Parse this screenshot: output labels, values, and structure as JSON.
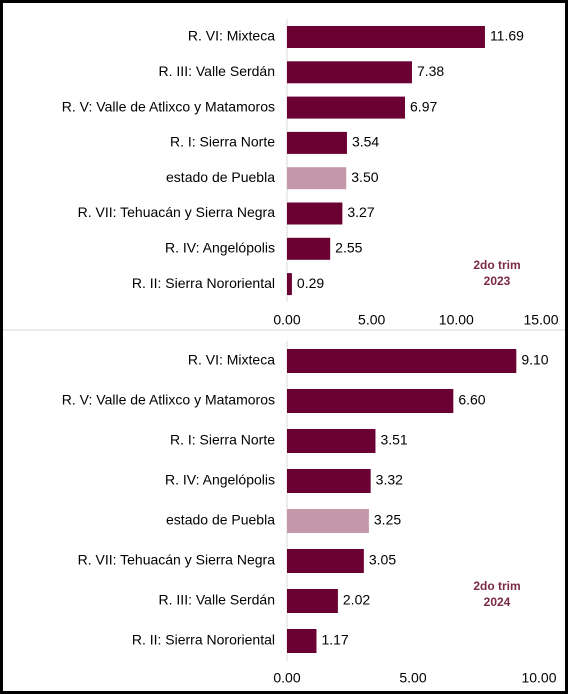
{
  "chart_data": [
    {
      "type": "bar",
      "orientation": "horizontal",
      "categories": [
        "R. VI:  Mixteca",
        "R. III: Valle Serdán",
        "R. V: Valle de Atlixco y Matamoros",
        "R. I: Sierra Norte",
        "estado de Puebla",
        "R. VII: Tehuacán y Sierra Negra",
        "R. IV: Angelópolis",
        "R. II: Sierra Nororiental"
      ],
      "values": [
        11.69,
        7.38,
        6.97,
        3.54,
        3.5,
        3.27,
        2.55,
        0.29
      ],
      "value_labels": [
        "11.69",
        "7.38",
        "6.97",
        "3.54",
        "3.50",
        "3.27",
        "2.55",
        "0.29"
      ],
      "colors": [
        "#6b0033",
        "#6b0033",
        "#6b0033",
        "#6b0033",
        "#c497aa",
        "#6b0033",
        "#6b0033",
        "#6b0033"
      ],
      "xlim": [
        0,
        15
      ],
      "xticks": [
        {
          "value": 0,
          "label": "0.00"
        },
        {
          "value": 5,
          "label": "5.00"
        },
        {
          "value": 10,
          "label": "10.00"
        },
        {
          "value": 15,
          "label": "15.00"
        }
      ],
      "annotation": [
        "2do trim",
        "2023"
      ]
    },
    {
      "type": "bar",
      "orientation": "horizontal",
      "categories": [
        "R. VI:  Mixteca",
        "R. V: Valle de Atlixco y Matamoros",
        "R. I: Sierra Norte",
        "R. IV: Angelópolis",
        "estado de Puebla",
        "R. VII: Tehuacán y Sierra Negra",
        "R. III: Valle Serdán",
        "R. II: Sierra Nororiental"
      ],
      "values": [
        9.1,
        6.6,
        3.51,
        3.32,
        3.25,
        3.05,
        2.02,
        1.17
      ],
      "value_labels": [
        "9.10",
        "6.60",
        "3.51",
        "3.32",
        "3.25",
        "3.05",
        "2.02",
        "1.17"
      ],
      "colors": [
        "#6b0033",
        "#6b0033",
        "#6b0033",
        "#6b0033",
        "#c497aa",
        "#6b0033",
        "#6b0033",
        "#6b0033"
      ],
      "xlim": [
        0,
        10
      ],
      "xticks": [
        {
          "value": 0,
          "label": "0.00"
        },
        {
          "value": 5,
          "label": "5.00"
        },
        {
          "value": 10,
          "label": "10.00"
        }
      ],
      "annotation": [
        "2do trim",
        "2024"
      ]
    }
  ]
}
